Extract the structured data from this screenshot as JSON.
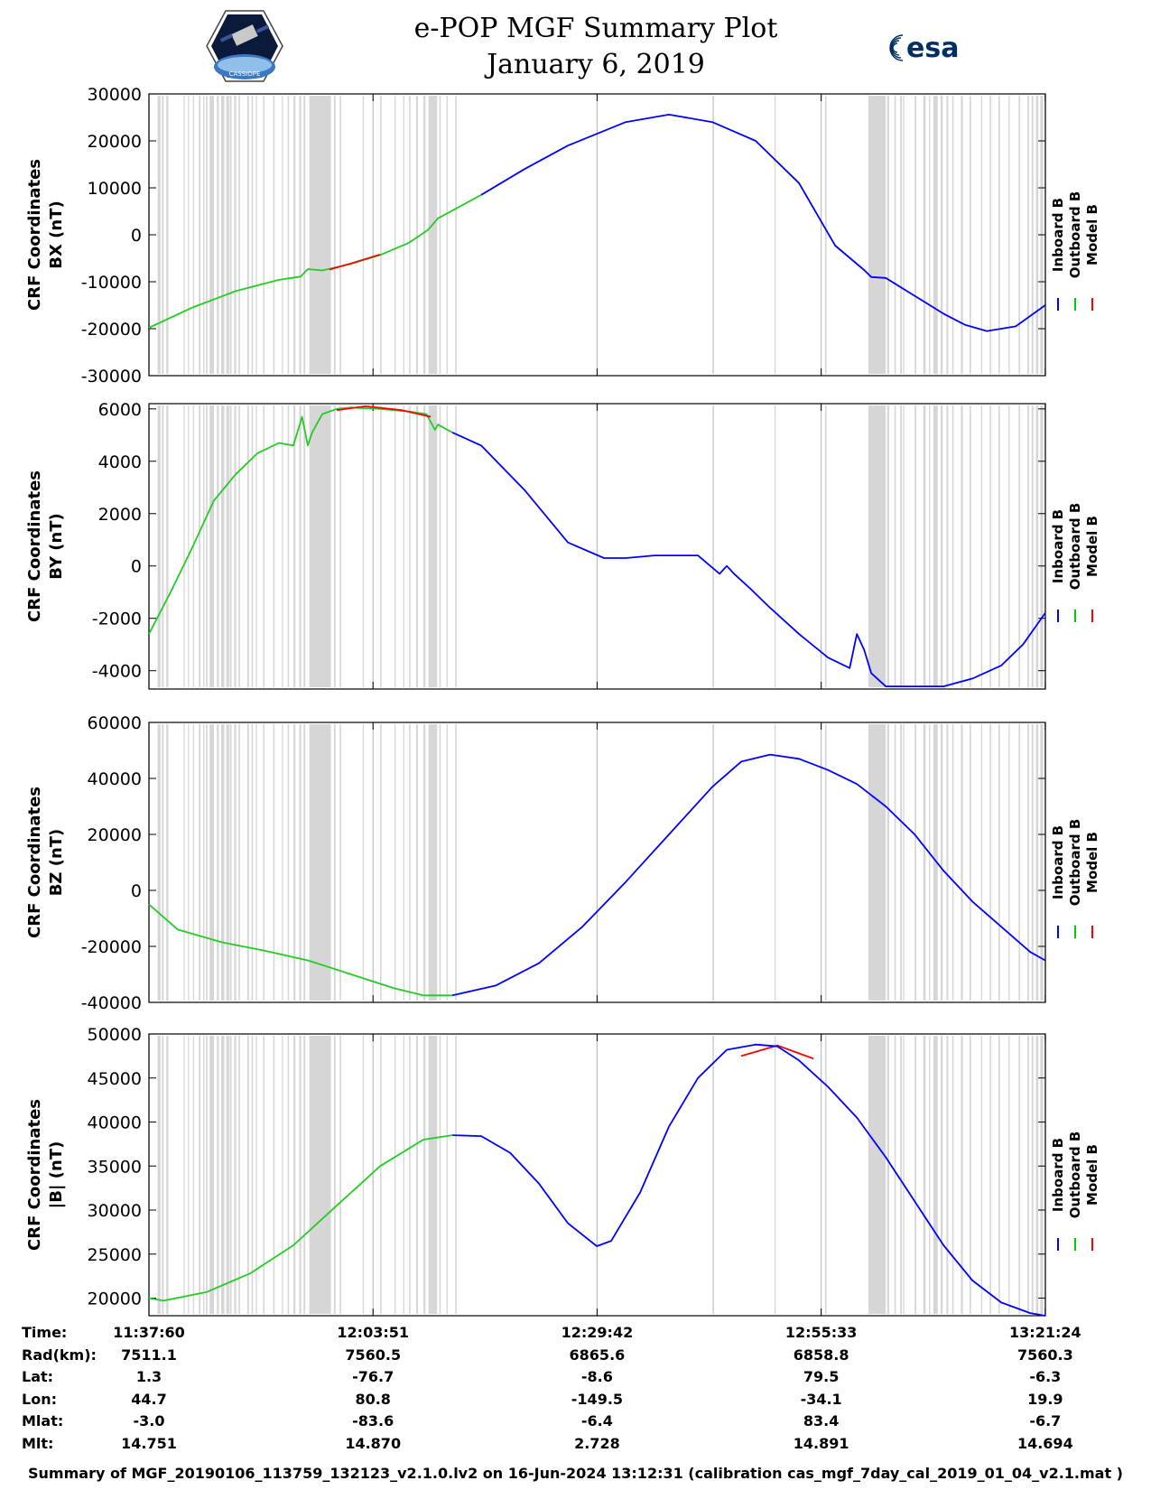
{
  "header": {
    "title_line1": "e-POP MGF Summary Plot",
    "title_line2": "January 6, 2019",
    "left_logo_text": "CASSIOPE",
    "right_logo_text": "esa"
  },
  "footer": {
    "text": "Summary of MGF_20190106_113759_132123_v2.1.0.lv2 on 16-Jun-2024 13:12:31 (calibration cas_mgf_7day_cal_2019_01_04_v2.1.mat )"
  },
  "legend": {
    "entries": [
      {
        "label": "Inboard B",
        "color": "#0000ff"
      },
      {
        "label": "Outboard B",
        "color": "#00cc00"
      },
      {
        "label": "Model B",
        "color": "#ff0000"
      }
    ]
  },
  "colors": {
    "inboard": "#0000ff",
    "outboard": "#22cc22",
    "model": "#ff0000",
    "shade": "#d6d6d6"
  },
  "time_table": {
    "rows": [
      {
        "label": "Time:",
        "values": [
          "11:37:60",
          "12:03:51",
          "12:29:42",
          "12:55:33",
          "13:21:24"
        ]
      },
      {
        "label": "Rad(km):",
        "values": [
          "7511.1",
          "7560.5",
          "6865.6",
          "6858.8",
          "7560.3"
        ]
      },
      {
        "label": "Lat:",
        "values": [
          "1.3",
          "-76.7",
          "-8.6",
          "79.5",
          "-6.3"
        ]
      },
      {
        "label": "Lon:",
        "values": [
          "44.7",
          "80.8",
          "-149.5",
          "-34.1",
          "19.9"
        ]
      },
      {
        "label": "Mlat:",
        "values": [
          "-3.0",
          "-83.6",
          "-6.4",
          "83.4",
          "-6.7"
        ]
      },
      {
        "label": "Mlt:",
        "values": [
          "14.751",
          "14.870",
          "2.728",
          "14.891",
          "14.694"
        ]
      }
    ]
  },
  "chart_data": [
    {
      "type": "line",
      "id": "bx",
      "ylabel_line1": "CRF Coordinates",
      "ylabel_line2": "BX (nT)",
      "xlim": [
        0,
        6205
      ],
      "ylim": [
        -30000,
        30000
      ],
      "yticks": [
        -30000,
        -20000,
        -10000,
        0,
        10000,
        20000,
        30000
      ],
      "xticks": [
        0,
        1551,
        3102,
        4653,
        6204
      ],
      "series": [
        {
          "name": "Outboard B",
          "x": [
            0,
            300,
            600,
            900,
            1050,
            1100,
            1200,
            1400,
            1600,
            1800,
            1930,
            2000,
            2300
          ],
          "values": [
            -19800,
            -15500,
            -12000,
            -9600,
            -8900,
            -7300,
            -7600,
            -6200,
            -4300,
            -1700,
            1000,
            3500,
            8500
          ]
        },
        {
          "name": "Model B",
          "x": [
            1250,
            1400,
            1600
          ],
          "values": [
            -7400,
            -6100,
            -4200
          ]
        },
        {
          "name": "Inboard B",
          "x": [
            2300,
            2600,
            2900,
            3300,
            3600,
            3900,
            4200,
            4500,
            4750,
            4950,
            5000,
            5100,
            5300,
            5500,
            5650,
            5800,
            6000,
            6204
          ],
          "values": [
            8500,
            14000,
            19000,
            24000,
            25600,
            24000,
            20000,
            11000,
            -2300,
            -7500,
            -9000,
            -9200,
            -13000,
            -16800,
            -19200,
            -20500,
            -19500,
            -15000
          ]
        }
      ]
    },
    {
      "type": "line",
      "id": "by",
      "ylabel_line1": "CRF Coordinates",
      "ylabel_line2": "BY (nT)",
      "xlim": [
        0,
        6205
      ],
      "ylim": [
        -4700,
        6200
      ],
      "yticks": [
        -4000,
        -2000,
        0,
        2000,
        4000,
        6000
      ],
      "xticks": [
        0,
        1551,
        3102,
        4653,
        6204
      ],
      "series": [
        {
          "name": "Outboard B",
          "x": [
            0,
            150,
            300,
            450,
            600,
            750,
            900,
            1000,
            1060,
            1100,
            1130,
            1200,
            1300,
            1400,
            1600,
            1800,
            1920,
            1980,
            2000,
            2100
          ],
          "values": [
            -2600,
            -1000,
            700,
            2500,
            3500,
            4300,
            4700,
            4600,
            5700,
            4600,
            5100,
            5800,
            6000,
            6050,
            6000,
            5900,
            5800,
            5200,
            5400,
            5100
          ]
        },
        {
          "name": "Model B",
          "x": [
            1300,
            1500,
            1750,
            1950
          ],
          "values": [
            5950,
            6100,
            5950,
            5700
          ]
        },
        {
          "name": "Inboard B",
          "x": [
            2100,
            2300,
            2600,
            2900,
            3150,
            3300,
            3500,
            3800,
            3950,
            4000,
            4050,
            4150,
            4300,
            4500,
            4700,
            4850,
            4900,
            4950,
            5000,
            5100,
            5300,
            5500,
            5700,
            5900,
            6050,
            6204
          ],
          "values": [
            5100,
            4600,
            2900,
            900,
            300,
            300,
            400,
            400,
            -300,
            0,
            -300,
            -800,
            -1600,
            -2600,
            -3500,
            -3900,
            -2600,
            -3200,
            -4100,
            -4600,
            -4600,
            -4600,
            -4300,
            -3800,
            -3000,
            -1800
          ]
        }
      ]
    },
    {
      "type": "line",
      "id": "bz",
      "ylabel_line1": "CRF Coordinates",
      "ylabel_line2": "BZ (nT)",
      "xlim": [
        0,
        6205
      ],
      "ylim": [
        -40000,
        60000
      ],
      "yticks": [
        -40000,
        -20000,
        0,
        20000,
        40000,
        60000
      ],
      "xticks": [
        0,
        1551,
        3102,
        4653,
        6204
      ],
      "series": [
        {
          "name": "Outboard B",
          "x": [
            0,
            200,
            500,
            800,
            1100,
            1400,
            1700,
            1900,
            2100
          ],
          "values": [
            -5000,
            -14000,
            -18500,
            -21500,
            -25000,
            -30000,
            -35000,
            -37500,
            -37500
          ]
        },
        {
          "name": "Inboard B",
          "x": [
            2100,
            2400,
            2700,
            3000,
            3300,
            3600,
            3900,
            4100,
            4300,
            4500,
            4700,
            4900,
            5100,
            5300,
            5500,
            5700,
            5900,
            6100,
            6204
          ],
          "values": [
            -37500,
            -34000,
            -26000,
            -13000,
            3000,
            20000,
            37000,
            46000,
            48500,
            47000,
            43000,
            38000,
            30000,
            20000,
            7000,
            -4000,
            -13000,
            -22000,
            -25000
          ]
        }
      ]
    },
    {
      "type": "line",
      "id": "bmag",
      "ylabel_line1": "CRF Coordinates",
      "ylabel_line2": "|B| (nT)",
      "xlim": [
        0,
        6205
      ],
      "ylim": [
        18000,
        50000
      ],
      "yticks": [
        20000,
        25000,
        30000,
        35000,
        40000,
        45000,
        50000
      ],
      "xticks": [
        0,
        1551,
        3102,
        4653,
        6204
      ],
      "series": [
        {
          "name": "Outboard B",
          "x": [
            0,
            100,
            400,
            700,
            1000,
            1300,
            1600,
            1900,
            2100
          ],
          "values": [
            20000,
            19700,
            20700,
            22800,
            26000,
            30500,
            35000,
            38000,
            38500
          ]
        },
        {
          "name": "Model B",
          "x": [
            4100,
            4350,
            4600
          ],
          "values": [
            47500,
            48700,
            47200
          ]
        },
        {
          "name": "Inboard B",
          "x": [
            2100,
            2300,
            2500,
            2700,
            2900,
            3100,
            3200,
            3400,
            3600,
            3800,
            4000,
            4200,
            4350,
            4500,
            4700,
            4900,
            5100,
            5300,
            5500,
            5700,
            5900,
            6100,
            6204
          ],
          "values": [
            38500,
            38400,
            36500,
            33000,
            28500,
            25900,
            26500,
            32000,
            39500,
            45000,
            48200,
            48800,
            48600,
            47000,
            44000,
            40500,
            36000,
            31000,
            26000,
            22000,
            19500,
            18300,
            18000
          ]
        }
      ]
    }
  ]
}
